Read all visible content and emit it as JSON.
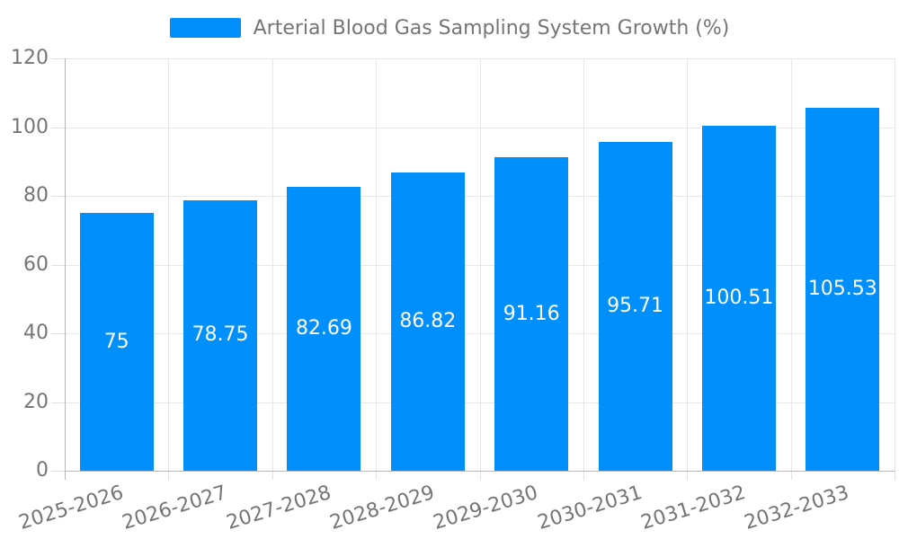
{
  "chart_data": {
    "type": "bar",
    "title": "Arterial Blood Gas Sampling System Growth (%)",
    "categories": [
      "2025-2026",
      "2026-2027",
      "2027-2028",
      "2028-2029",
      "2029-2030",
      "2030-2031",
      "2031-2032",
      "2032-2033"
    ],
    "series": [
      {
        "name": "Arterial Blood Gas Sampling System Growth (%)",
        "values": [
          75,
          78.75,
          82.69,
          86.82,
          91.16,
          95.71,
          100.51,
          105.53
        ]
      }
    ],
    "value_labels": [
      "75",
      "78.75",
      "82.69",
      "86.82",
      "91.16",
      "95.71",
      "100.51",
      "105.53"
    ],
    "xlabel": "",
    "ylabel": "",
    "ylim": [
      0,
      120
    ],
    "yticks": [
      0,
      20,
      40,
      60,
      80,
      100,
      120
    ],
    "grid": "horizontal-and-vertical",
    "legend_position": "top",
    "colors": {
      "bar": "#008FFB",
      "axis_label": "#757575",
      "value_label": "#ffffff",
      "gridline": "#e7e7e7",
      "axis_line": "#b6b6b6",
      "tick": "#e0e0e0"
    }
  }
}
